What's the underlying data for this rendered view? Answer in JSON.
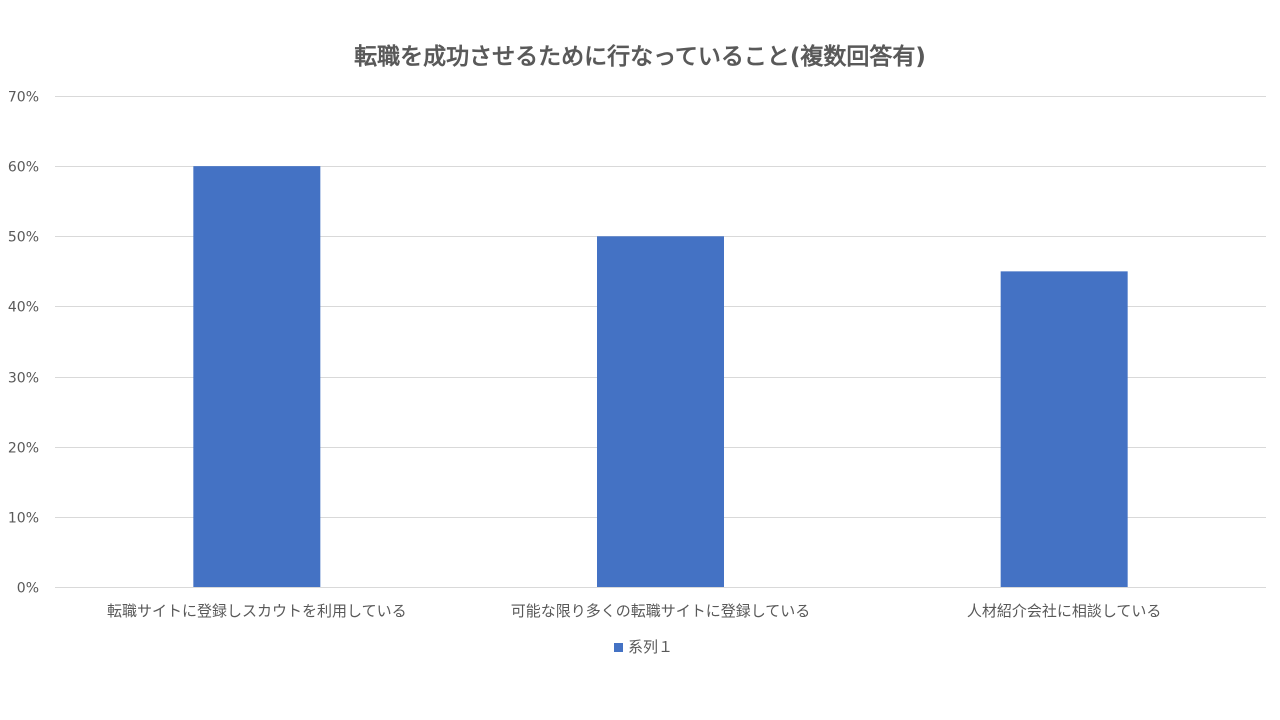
{
  "chart_data": {
    "type": "bar",
    "title": "転職を成功させるために行なっていること(複数回答有)",
    "categories": [
      "転職サイトに登録しスカウトを利用している",
      "可能な限り多くの転職サイトに登録している",
      "人材紹介会社に相談している"
    ],
    "series": [
      {
        "name": "系列１",
        "values": [
          0.6,
          0.5,
          0.45
        ],
        "color": "#4472C4"
      }
    ],
    "ylim": [
      0,
      0.7
    ],
    "yticks": [
      0,
      0.1,
      0.2,
      0.3,
      0.4,
      0.5,
      0.6,
      0.7
    ],
    "ytick_labels": [
      "0%",
      "10%",
      "20%",
      "30%",
      "40%",
      "50%",
      "60%",
      "70%"
    ],
    "xlabel": "",
    "ylabel": "",
    "grid": true,
    "legend_position": "bottom",
    "colors": {
      "gridline": "#D9D9D9",
      "text": "#595959",
      "bar": "#4472C4"
    }
  }
}
